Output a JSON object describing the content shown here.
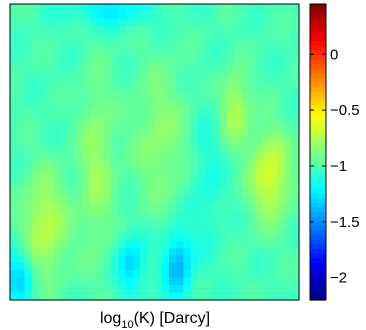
{
  "chart_data": {
    "type": "heatmap",
    "title": "",
    "xlabel_base": "log",
    "xlabel_subscript": "10",
    "xlabel_rest": "(K) [Darcy]",
    "colormap": "jet",
    "colorbar": {
      "range": [
        -2.2,
        0.45
      ],
      "ticks": [
        0,
        -0.5,
        -1,
        -1.5,
        -2
      ],
      "tick_labels": [
        "0",
        "−0.5",
        "−1",
        "−1.5",
        "−2"
      ]
    },
    "grid": false,
    "axis_ticks_shown": false
  }
}
